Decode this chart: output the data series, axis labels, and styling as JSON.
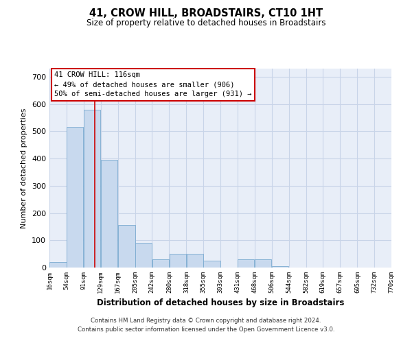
{
  "title": "41, CROW HILL, BROADSTAIRS, CT10 1HT",
  "subtitle": "Size of property relative to detached houses in Broadstairs",
  "xlabel": "Distribution of detached houses by size in Broadstairs",
  "ylabel": "Number of detached properties",
  "bin_edges": [
    16,
    54,
    91,
    129,
    167,
    205,
    242,
    280,
    318,
    355,
    393,
    431,
    468,
    506,
    544,
    582,
    619,
    657,
    695,
    732,
    770
  ],
  "bar_heights": [
    20,
    515,
    580,
    395,
    155,
    90,
    30,
    50,
    50,
    25,
    0,
    30,
    30,
    5,
    0,
    0,
    0,
    0,
    0,
    0
  ],
  "bar_color": "#c8d9ee",
  "bar_edge_color": "#7aaad0",
  "grid_color": "#c8d4e8",
  "background_color": "#e8eef8",
  "property_size": 116,
  "property_label": "41 CROW HILL: 116sqm",
  "annotation_line1": "← 49% of detached houses are smaller (906)",
  "annotation_line2": "50% of semi-detached houses are larger (931) →",
  "vline_color": "#cc0000",
  "box_edge_color": "#cc0000",
  "yticks": [
    0,
    100,
    200,
    300,
    400,
    500,
    600,
    700
  ],
  "ylim": [
    0,
    730
  ],
  "footnote1": "Contains HM Land Registry data © Crown copyright and database right 2024.",
  "footnote2": "Contains public sector information licensed under the Open Government Licence v3.0."
}
